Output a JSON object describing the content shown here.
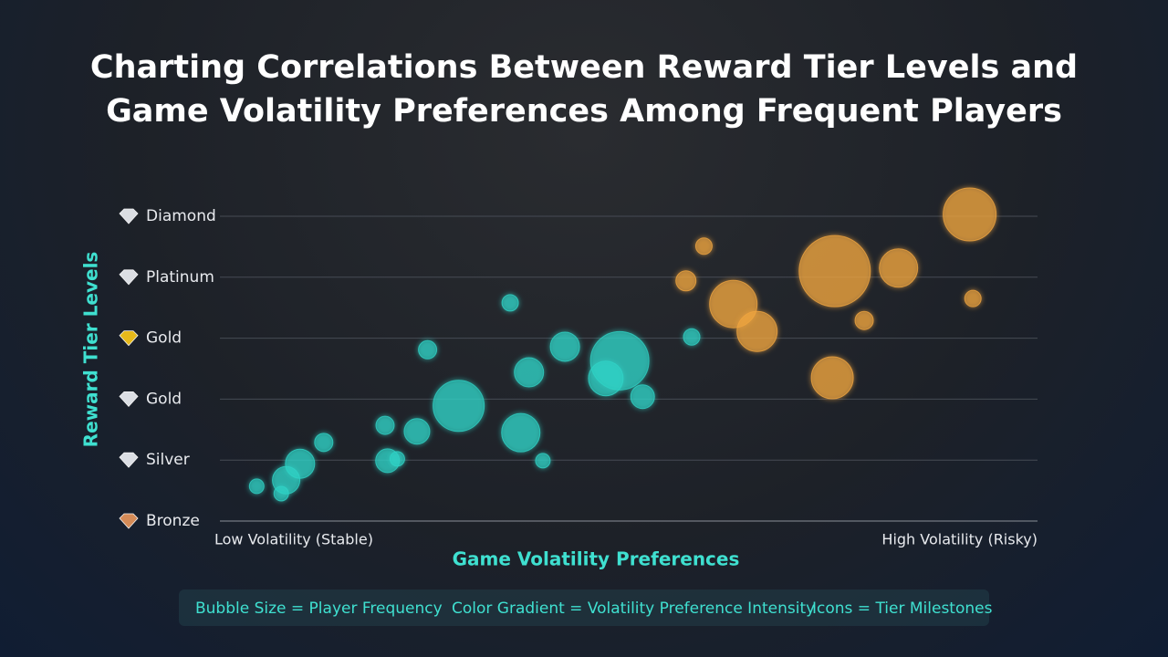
{
  "chart_data": {
    "type": "bubble",
    "title": "Charting Correlations Between Reward Tier Levels and Game Volatility Preferences Among Frequent Players",
    "xlabel": "Game Volatility Preferences",
    "ylabel": "Reward Tier Levels",
    "xlim": [
      0,
      100
    ],
    "xticks": [
      {
        "value": 0,
        "label": "Low Volatility (Stable)"
      },
      {
        "value": 100,
        "label": "High Volatility (Risky)"
      }
    ],
    "ylim": [
      0,
      5
    ],
    "yticks": [
      {
        "value": 0,
        "label": "Bronze"
      },
      {
        "value": 1,
        "label": "Silver"
      },
      {
        "value": 2,
        "label": "Gold"
      },
      {
        "value": 3,
        "label": "Gold"
      },
      {
        "value": 4,
        "label": "Platinum"
      },
      {
        "value": 5,
        "label": "Diamond"
      }
    ],
    "ytick_icon_colors": [
      "#e0915a",
      "#e6e9ee",
      "#e6e9ee",
      "#f2c21b",
      "#e6e9ee",
      "#e6e9ee"
    ],
    "grid": true,
    "series": [
      {
        "color": "#2fd3c6",
        "x": [
          4.5,
          7.5,
          8.1,
          9.8,
          12.7,
          20.2,
          20.5,
          21.7,
          24.1,
          25.4,
          29.2,
          35.5,
          36.8,
          37.8,
          39.5,
          42.2,
          47.2,
          48.9,
          51.7,
          57.7
        ],
        "values": [
          0.57,
          0.45,
          0.67,
          0.94,
          1.29,
          1.57,
          0.99,
          1.02,
          1.47,
          2.81,
          1.89,
          3.58,
          1.45,
          2.44,
          0.99,
          2.86,
          2.34,
          2.63,
          2.04,
          3.02
        ],
        "sizes": [
          8,
          8,
          15,
          16,
          10,
          10,
          13,
          8,
          14,
          10,
          28,
          9,
          21,
          16,
          8,
          16,
          19,
          32,
          13,
          9
        ]
      },
      {
        "color": "#f0a540",
        "x": [
          57.0,
          59.2,
          62.8,
          65.7,
          74.9,
          75.2,
          78.8,
          83.0,
          91.7,
          92.1
        ],
        "values": [
          3.94,
          4.51,
          3.56,
          3.11,
          2.35,
          4.1,
          3.29,
          4.15,
          5.03,
          3.65
        ],
        "sizes": [
          11,
          9,
          26,
          22,
          23,
          39,
          10,
          21,
          29,
          9
        ]
      }
    ],
    "notes": [
      "Bubble Size = Player Frequency",
      "Color Gradient = Volatility Preference Intensity",
      "Icons = Tier Milestones"
    ]
  }
}
